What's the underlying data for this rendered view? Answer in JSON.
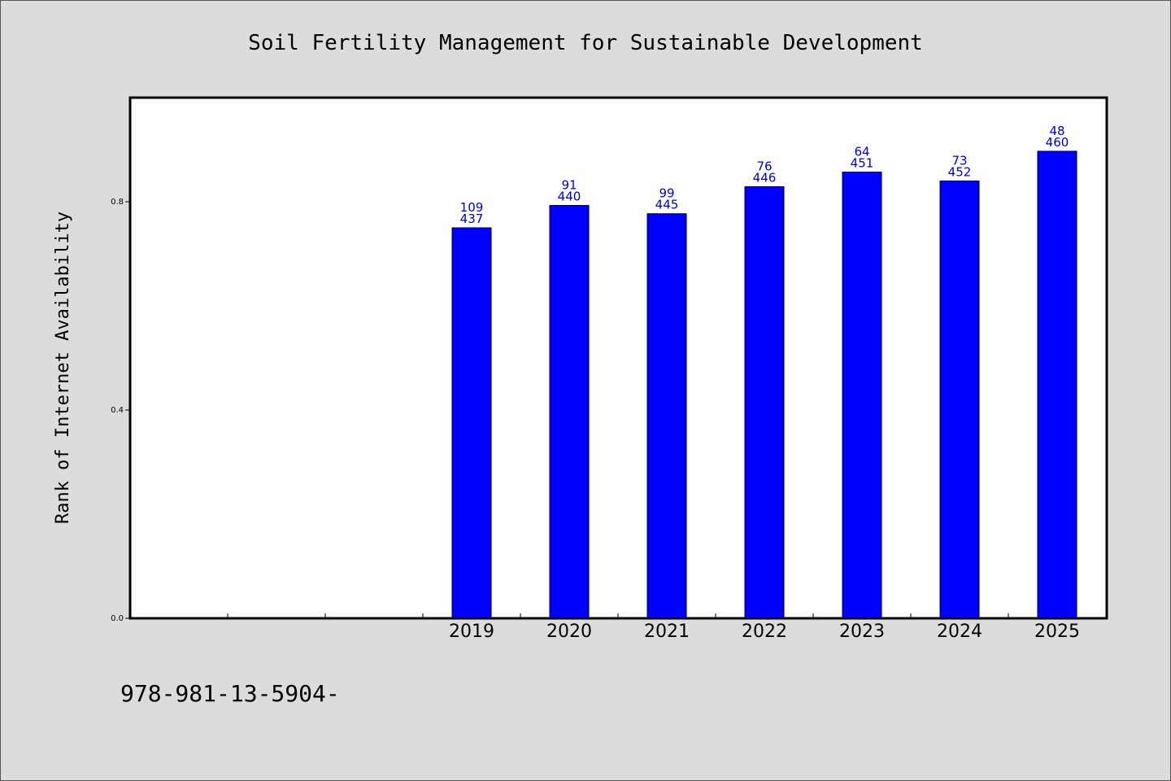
{
  "chart_data": {
    "type": "bar",
    "title": "Soil Fertility Management for Sustainable Development",
    "xlabel": "",
    "ylabel": "Rank of Internet Availability",
    "categories": [
      "",
      "",
      "",
      "2019",
      "2020",
      "2021",
      "2022",
      "2023",
      "2024",
      "2025"
    ],
    "values": [
      null,
      null,
      null,
      0.75,
      0.793,
      0.777,
      0.829,
      0.857,
      0.84,
      0.897
    ],
    "labels_top": [
      "",
      "",
      "",
      "109",
      "91",
      "99",
      "76",
      "64",
      "73",
      "48"
    ],
    "labels_bottom": [
      "",
      "",
      "",
      "437",
      "440",
      "445",
      "446",
      "451",
      "452",
      "460"
    ],
    "ylim": [
      0,
      1.0
    ],
    "yticks": [
      0.0,
      0.4,
      0.8
    ],
    "ytick_labels": [
      "0.0",
      "0.4",
      "0.8"
    ],
    "grid": false,
    "bar_color": "#0000ff",
    "label_color": "#0000cc"
  },
  "footer": {
    "text": "978-981-13-5904-"
  }
}
